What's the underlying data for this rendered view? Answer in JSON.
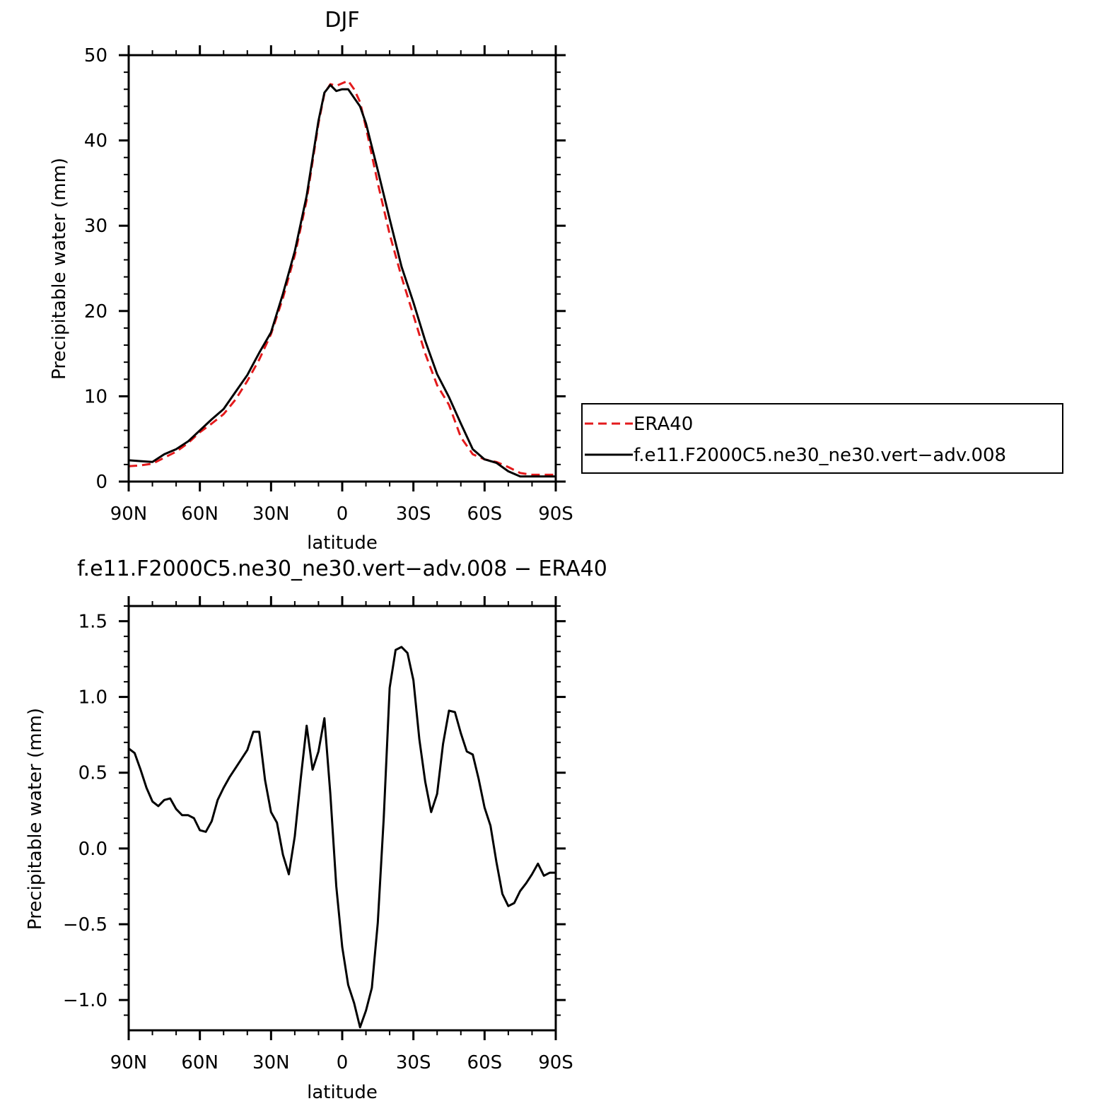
{
  "colors": {
    "era40": "#e31a1c",
    "model": "#000000",
    "axis": "#000000"
  },
  "chart_data": [
    {
      "type": "line",
      "title": "DJF",
      "xlabel": "latitude",
      "ylabel": "Precipitable water (mm)",
      "xlim": [
        90,
        -90
      ],
      "ylim": [
        0,
        50
      ],
      "xticks": [
        {
          "value": 90,
          "label": "90N"
        },
        {
          "value": 60,
          "label": "60N"
        },
        {
          "value": 30,
          "label": "30N"
        },
        {
          "value": 0,
          "label": "0"
        },
        {
          "value": -30,
          "label": "30S"
        },
        {
          "value": -60,
          "label": "60S"
        },
        {
          "value": -90,
          "label": "90S"
        }
      ],
      "yticks": [
        0,
        10,
        20,
        30,
        40,
        50
      ],
      "yminor_step": 2,
      "xminor_step": 10,
      "legend": {
        "placement": "right"
      },
      "series": [
        {
          "name": "ERA40",
          "color": "#e31a1c",
          "dash": "dashed",
          "x": [
            90,
            85,
            80,
            75,
            70,
            65,
            60,
            55,
            50,
            45,
            40,
            35,
            30,
            25,
            20,
            15,
            10,
            7.5,
            5,
            2.5,
            0,
            -2.5,
            -5,
            -7.5,
            -10,
            -15,
            -20,
            -25,
            -30,
            -35,
            -40,
            -45,
            -50,
            -55,
            -60,
            -65,
            -70,
            -75,
            -80,
            -85,
            -90
          ],
          "y": [
            1.8,
            1.9,
            2.1,
            2.8,
            3.5,
            4.5,
            5.8,
            6.8,
            7.9,
            9.6,
            11.8,
            14.3,
            17.3,
            21.5,
            26.5,
            33,
            42,
            45.5,
            46.6,
            46.4,
            46.7,
            47,
            46,
            44.5,
            41.5,
            35,
            29,
            24,
            19.5,
            15,
            11.3,
            9,
            5.2,
            3.2,
            2.6,
            2.3,
            1.7,
            1.0,
            0.8,
            0.8,
            0.8
          ]
        },
        {
          "name": "f.e11.F2000C5.ne30_ne30.vert−adv.008",
          "color": "#000000",
          "dash": "solid",
          "x": [
            90,
            85,
            80,
            75,
            70,
            65,
            60,
            55,
            50,
            45,
            40,
            35,
            30,
            25,
            20,
            15,
            10,
            7.5,
            5,
            2.5,
            0,
            -2.5,
            -5,
            -7.5,
            -10,
            -15,
            -20,
            -25,
            -30,
            -35,
            -40,
            -45,
            -50,
            -55,
            -60,
            -65,
            -70,
            -75,
            -80,
            -85,
            -90
          ],
          "y": [
            2.5,
            2.4,
            2.3,
            3.2,
            3.8,
            4.7,
            6.0,
            7.3,
            8.5,
            10.5,
            12.5,
            15.1,
            17.5,
            22.0,
            27.0,
            33.5,
            42.3,
            45.6,
            46.5,
            45.8,
            46.0,
            46.0,
            45.0,
            44.0,
            42.0,
            36.5,
            30.8,
            25.2,
            21.0,
            16.5,
            12.6,
            9.9,
            6.8,
            3.8,
            2.6,
            2.2,
            1.2,
            0.6,
            0.6,
            0.6,
            0.6
          ]
        }
      ]
    },
    {
      "type": "line",
      "title": "f.e11.F2000C5.ne30_ne30.vert−adv.008 − ERA40",
      "xlabel": "latitude",
      "ylabel": "Precipitable water (mm)",
      "xlim": [
        90,
        -90
      ],
      "ylim": [
        -1.2,
        1.6
      ],
      "xticks": [
        {
          "value": 90,
          "label": "90N"
        },
        {
          "value": 60,
          "label": "60N"
        },
        {
          "value": 30,
          "label": "30N"
        },
        {
          "value": 0,
          "label": "0"
        },
        {
          "value": -30,
          "label": "30S"
        },
        {
          "value": -60,
          "label": "60S"
        },
        {
          "value": -90,
          "label": "90S"
        }
      ],
      "yticks": [
        {
          "value": -1.0,
          "label": "−1.0"
        },
        {
          "value": -0.5,
          "label": "−0.5"
        },
        {
          "value": 0.0,
          "label": "0.0"
        },
        {
          "value": 0.5,
          "label": "0.5"
        },
        {
          "value": 1.0,
          "label": "1.0"
        },
        {
          "value": 1.5,
          "label": "1.5"
        }
      ],
      "yminor_step": 0.1,
      "xminor_step": 10,
      "series": [
        {
          "color": "#000000",
          "dash": "solid",
          "x": [
            90,
            87.5,
            85,
            82.5,
            80,
            77.5,
            75,
            72.5,
            70,
            67.5,
            65,
            62.5,
            60,
            57.5,
            55,
            52.5,
            50,
            47.5,
            45,
            42.5,
            40,
            37.5,
            35,
            32.5,
            30,
            27.5,
            25,
            22.5,
            20,
            17.5,
            15,
            12.5,
            10,
            7.5,
            5,
            2.5,
            0,
            -2.5,
            -5,
            -7.5,
            -10,
            -12.5,
            -15,
            -17.5,
            -20,
            -22.5,
            -25,
            -27.5,
            -30,
            -32.5,
            -35,
            -37.5,
            -40,
            -42.5,
            -45,
            -47.5,
            -50,
            -52.5,
            -55,
            -57.5,
            -60,
            -62.5,
            -65,
            -67.5,
            -70,
            -72.5,
            -75,
            -77.5,
            -80,
            -82.5,
            -85,
            -87.5,
            -90
          ],
          "y": [
            0.66,
            0.63,
            0.52,
            0.4,
            0.31,
            0.28,
            0.32,
            0.33,
            0.26,
            0.22,
            0.22,
            0.2,
            0.12,
            0.11,
            0.18,
            0.32,
            0.4,
            0.47,
            0.53,
            0.59,
            0.65,
            0.77,
            0.77,
            0.45,
            0.24,
            0.17,
            -0.04,
            -0.17,
            0.08,
            0.46,
            0.81,
            0.52,
            0.64,
            0.86,
            0.36,
            -0.25,
            -0.65,
            -0.9,
            -1.02,
            -1.18,
            -1.07,
            -0.92,
            -0.49,
            0.2,
            1.06,
            1.31,
            1.33,
            1.29,
            1.11,
            0.72,
            0.44,
            0.24,
            0.36,
            0.69,
            0.91,
            0.9,
            0.76,
            0.64,
            0.62,
            0.46,
            0.27,
            0.15,
            -0.09,
            -0.3,
            -0.38,
            -0.36,
            -0.28,
            -0.23,
            -0.17,
            -0.1,
            -0.18,
            -0.16,
            -0.16
          ]
        }
      ]
    }
  ]
}
